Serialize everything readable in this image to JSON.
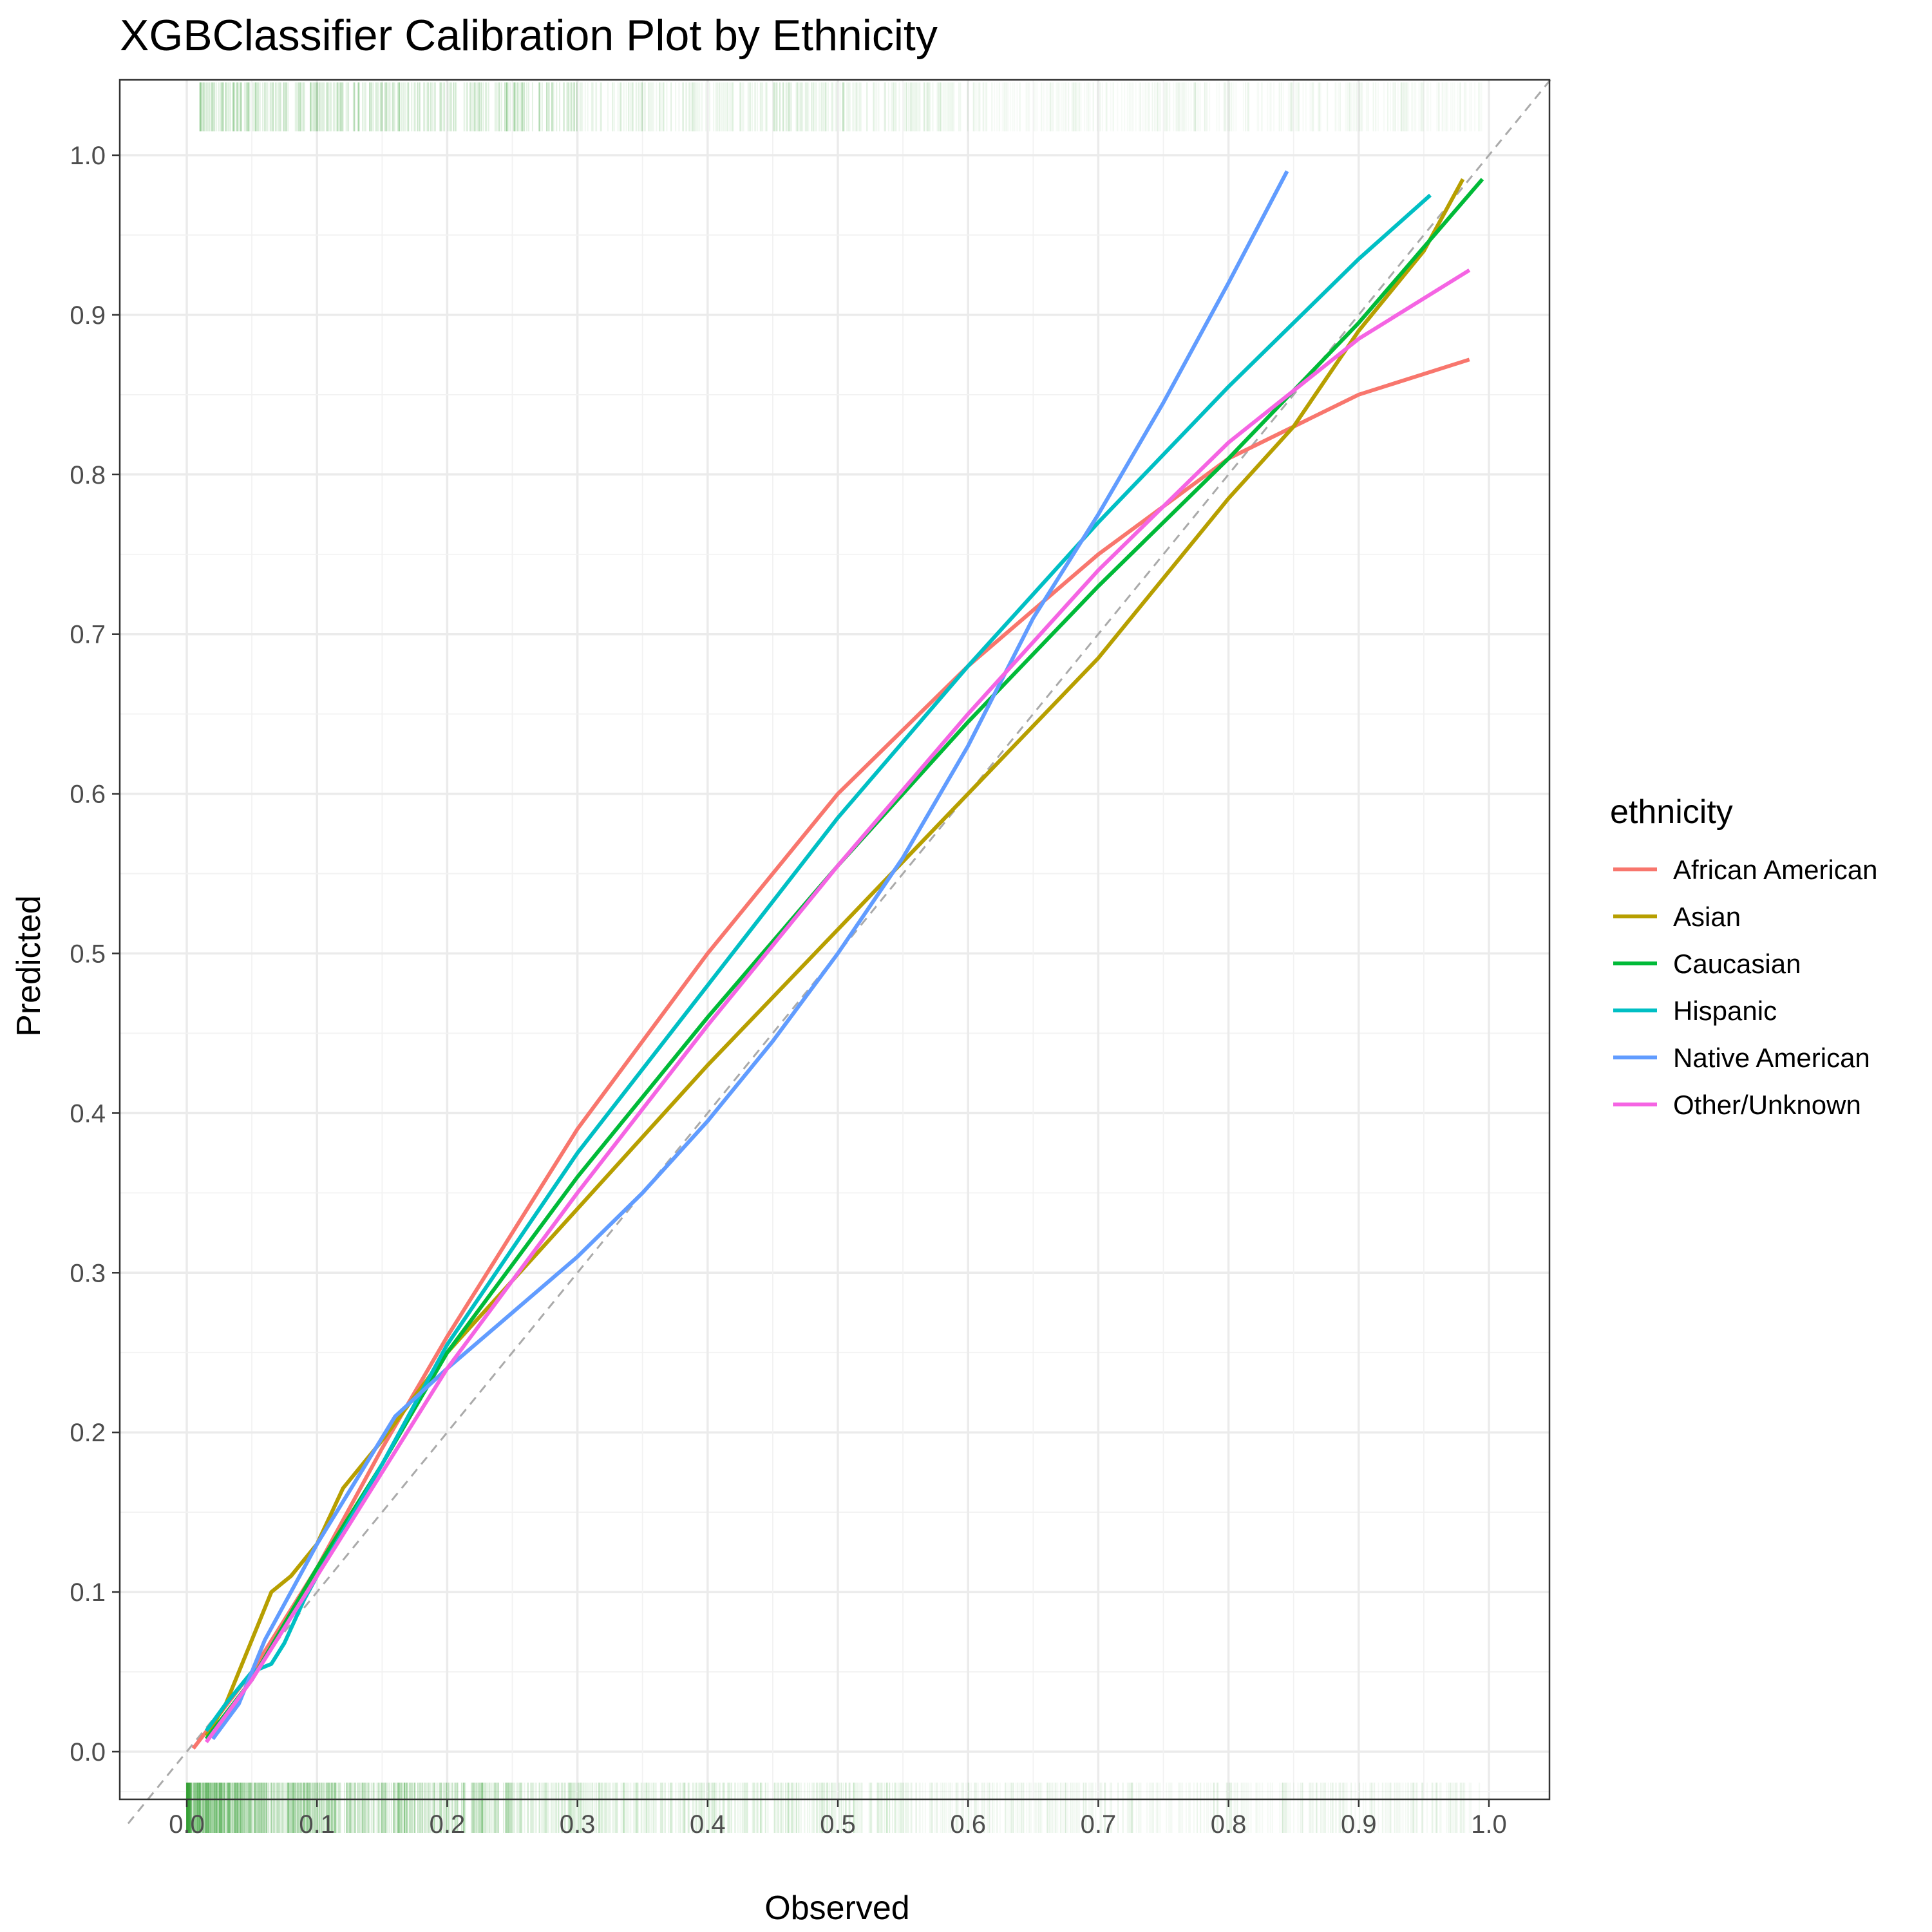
{
  "chart_data": {
    "type": "line",
    "title": "XGBClassifier Calibration Plot by Ethnicity",
    "xlabel": "Observed",
    "ylabel": "Predicted",
    "xlim": [
      -0.045,
      1.0
    ],
    "ylim": [
      -0.045,
      1.05
    ],
    "x_ticks": [
      0.0,
      0.1,
      0.2,
      0.3,
      0.4,
      0.5,
      0.6,
      0.7,
      0.8,
      0.9,
      1.0
    ],
    "y_ticks": [
      0.0,
      0.1,
      0.2,
      0.3,
      0.4,
      0.5,
      0.6,
      0.7,
      0.8,
      0.9,
      1.0
    ],
    "x_tick_labels": [
      "0.0",
      "0.1",
      "0.2",
      "0.3",
      "0.4",
      "0.5",
      "0.6",
      "0.7",
      "0.8",
      "0.9",
      "1.0"
    ],
    "y_tick_labels": [
      "0.0",
      "0.1",
      "0.2",
      "0.3",
      "0.4",
      "0.5",
      "0.6",
      "0.7",
      "0.8",
      "0.9",
      "1.0"
    ],
    "grid": true,
    "reference_line": {
      "type": "diagonal",
      "style": "dashed",
      "color": "#aaaaaa"
    },
    "rug": {
      "color": "#3aa33a",
      "positions": [
        "top",
        "bottom"
      ]
    },
    "legend": {
      "title": "ethnicity",
      "position": "right"
    },
    "series": [
      {
        "name": "African American",
        "color": "#F8766D",
        "x": [
          0.005,
          0.05,
          0.1,
          0.15,
          0.2,
          0.3,
          0.4,
          0.5,
          0.6,
          0.7,
          0.8,
          0.9,
          0.985
        ],
        "y": [
          0.002,
          0.05,
          0.115,
          0.19,
          0.26,
          0.39,
          0.5,
          0.6,
          0.68,
          0.75,
          0.81,
          0.85,
          0.872
        ]
      },
      {
        "name": "Asian",
        "color": "#B79F00",
        "x": [
          0.015,
          0.03,
          0.04,
          0.055,
          0.065,
          0.08,
          0.09,
          0.1,
          0.12,
          0.15,
          0.2,
          0.3,
          0.4,
          0.5,
          0.6,
          0.7,
          0.8,
          0.85,
          0.9,
          0.95,
          0.98
        ],
        "y": [
          0.01,
          0.03,
          0.05,
          0.08,
          0.1,
          0.11,
          0.12,
          0.13,
          0.165,
          0.195,
          0.25,
          0.34,
          0.43,
          0.515,
          0.6,
          0.685,
          0.785,
          0.83,
          0.89,
          0.94,
          0.985
        ]
      },
      {
        "name": "Caucasian",
        "color": "#00BA38",
        "x": [
          0.015,
          0.05,
          0.1,
          0.15,
          0.2,
          0.3,
          0.4,
          0.5,
          0.6,
          0.7,
          0.8,
          0.9,
          0.995
        ],
        "y": [
          0.008,
          0.045,
          0.115,
          0.18,
          0.25,
          0.36,
          0.46,
          0.555,
          0.645,
          0.73,
          0.81,
          0.895,
          0.985
        ]
      },
      {
        "name": "Hispanic",
        "color": "#00BFC4",
        "x": [
          0.015,
          0.03,
          0.05,
          0.065,
          0.075,
          0.09,
          0.1,
          0.15,
          0.2,
          0.3,
          0.4,
          0.5,
          0.6,
          0.7,
          0.8,
          0.9,
          0.955
        ],
        "y": [
          0.013,
          0.03,
          0.05,
          0.055,
          0.068,
          0.095,
          0.11,
          0.18,
          0.255,
          0.375,
          0.48,
          0.585,
          0.68,
          0.77,
          0.855,
          0.935,
          0.975
        ]
      },
      {
        "name": "Native American",
        "color": "#619CFF",
        "x": [
          0.02,
          0.04,
          0.06,
          0.08,
          0.1,
          0.13,
          0.16,
          0.2,
          0.25,
          0.3,
          0.35,
          0.4,
          0.45,
          0.5,
          0.55,
          0.6,
          0.65,
          0.7,
          0.75,
          0.8,
          0.845
        ],
        "y": [
          0.008,
          0.03,
          0.07,
          0.1,
          0.13,
          0.17,
          0.21,
          0.24,
          0.275,
          0.31,
          0.35,
          0.395,
          0.445,
          0.5,
          0.56,
          0.63,
          0.71,
          0.775,
          0.845,
          0.92,
          0.99
        ]
      },
      {
        "name": "Other/Unknown",
        "color": "#F564E3",
        "x": [
          0.015,
          0.05,
          0.1,
          0.15,
          0.2,
          0.3,
          0.4,
          0.5,
          0.6,
          0.7,
          0.8,
          0.9,
          0.985
        ],
        "y": [
          0.006,
          0.045,
          0.11,
          0.175,
          0.24,
          0.35,
          0.455,
          0.555,
          0.65,
          0.74,
          0.82,
          0.885,
          0.928
        ]
      }
    ]
  }
}
